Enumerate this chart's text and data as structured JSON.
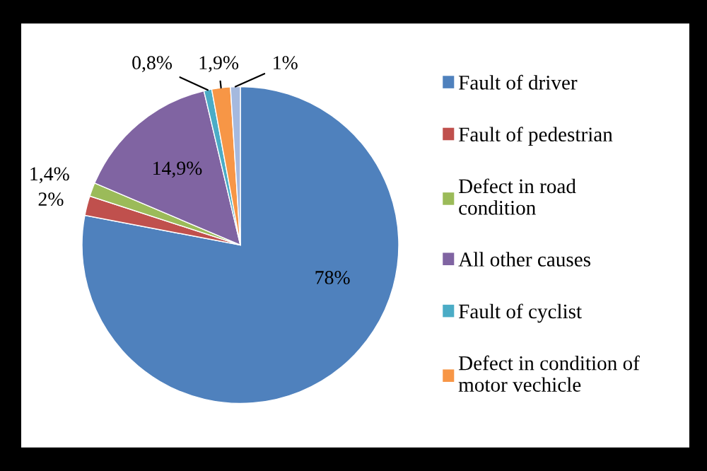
{
  "chart_data": {
    "type": "pie",
    "categories": [
      "Fault of driver",
      "Fault of pedestrian",
      "Defect in road condition",
      "All other causes",
      "Fault of cyclist",
      "Defect in condition of motor vechicle",
      null
    ],
    "values": [
      78,
      2,
      1.4,
      14.9,
      0.8,
      1.9,
      1
    ],
    "value_labels": [
      "78%",
      "2%",
      "1,4%",
      "14,9%",
      "0,8%",
      "1,9%",
      "1%"
    ],
    "colors": [
      "#4f81bd",
      "#c0504d",
      "#9bbb59",
      "#8064a2",
      "#4bacc6",
      "#f79646",
      "#a5b9de"
    ],
    "legend": "right"
  }
}
